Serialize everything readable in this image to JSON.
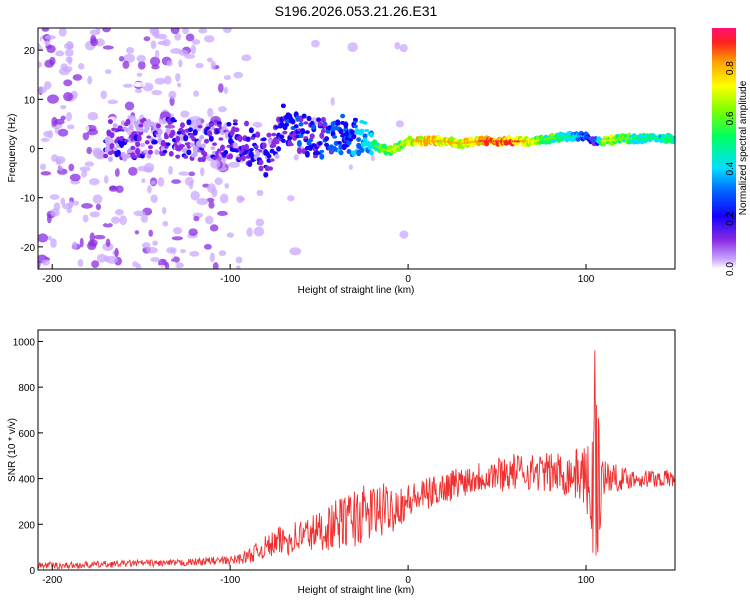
{
  "title": "S196.2026.053.21.26.E31",
  "chart_data": [
    {
      "type": "heatmap",
      "name": "spectrogram",
      "xlabel": "Height of straight line (km)",
      "ylabel": "Frequency (Hz)",
      "xlim": [
        -208,
        150
      ],
      "ylim": [
        -24.5,
        24.5
      ],
      "xticks": [
        -200,
        -100,
        0,
        100
      ],
      "yticks": [
        -20,
        -10,
        0,
        10,
        20
      ],
      "colorbar": {
        "label": "Normalized spectral amplitude",
        "ticks": [
          0.0,
          0.2,
          0.4,
          0.6,
          0.8
        ],
        "range": [
          0,
          0.96
        ],
        "colors": [
          "#ffffff",
          "#c9a8ff",
          "#8a2be2",
          "#1400ff",
          "#0060ff",
          "#00e0ff",
          "#00ff60",
          "#80ff00",
          "#ffff00",
          "#ffa000",
          "#ff2020",
          "#ff1070"
        ]
      },
      "ridge": {
        "x": [
          -170,
          -150,
          -130,
          -110,
          -100,
          -90,
          -80,
          -70,
          -60,
          -50,
          -40,
          -30,
          -20,
          -15,
          -10,
          0,
          10,
          20,
          30,
          40,
          50,
          60,
          70,
          80,
          90,
          100,
          105,
          110,
          120,
          130,
          140,
          150
        ],
        "freq": [
          1.5,
          2,
          2,
          1.5,
          2,
          1,
          -2,
          5,
          3,
          2,
          3,
          2.5,
          1,
          0,
          -0.5,
          1.5,
          1.5,
          1.5,
          1,
          1.5,
          1.5,
          1.5,
          1.5,
          2,
          2.5,
          2.5,
          1.5,
          1.5,
          2,
          2,
          2,
          2
        ],
        "amplitude": [
          0.25,
          0.25,
          0.25,
          0.25,
          0.3,
          0.3,
          0.3,
          0.3,
          0.35,
          0.35,
          0.4,
          0.45,
          0.6,
          0.7,
          0.75,
          0.8,
          0.9,
          0.85,
          0.85,
          0.9,
          0.95,
          0.95,
          0.8,
          0.65,
          0.6,
          0.4,
          0.3,
          0.8,
          0.7,
          0.6,
          0.6,
          0.6
        ]
      }
    },
    {
      "type": "line",
      "name": "snr",
      "xlabel": "Height of straight line (km)",
      "ylabel": "SNR (10 * v/v)",
      "xlim": [
        -208,
        150
      ],
      "ylim": [
        0,
        1050
      ],
      "xticks": [
        -200,
        -100,
        0,
        100
      ],
      "yticks": [
        0,
        200,
        400,
        600,
        800,
        1000
      ],
      "color": "#f03030",
      "series": [
        {
          "name": "SNR",
          "x": [
            -208,
            -190,
            -170,
            -150,
            -130,
            -110,
            -100,
            -90,
            -80,
            -70,
            -60,
            -50,
            -40,
            -30,
            -20,
            -10,
            0,
            10,
            20,
            30,
            40,
            50,
            60,
            70,
            80,
            90,
            100,
            103,
            105,
            107,
            110,
            120,
            130,
            140,
            150
          ],
          "y": [
            20,
            20,
            25,
            30,
            30,
            40,
            40,
            60,
            100,
            130,
            150,
            170,
            200,
            230,
            250,
            270,
            300,
            330,
            360,
            390,
            410,
            420,
            430,
            430,
            425,
            420,
            415,
            300,
            450,
            420,
            410,
            400,
            400,
            400,
            400
          ],
          "noise": [
            15,
            15,
            15,
            15,
            15,
            18,
            20,
            30,
            50,
            70,
            80,
            90,
            110,
            130,
            130,
            110,
            80,
            70,
            70,
            70,
            70,
            80,
            80,
            80,
            90,
            100,
            130,
            250,
            400,
            300,
            80,
            50,
            40,
            40,
            40
          ]
        }
      ]
    }
  ]
}
